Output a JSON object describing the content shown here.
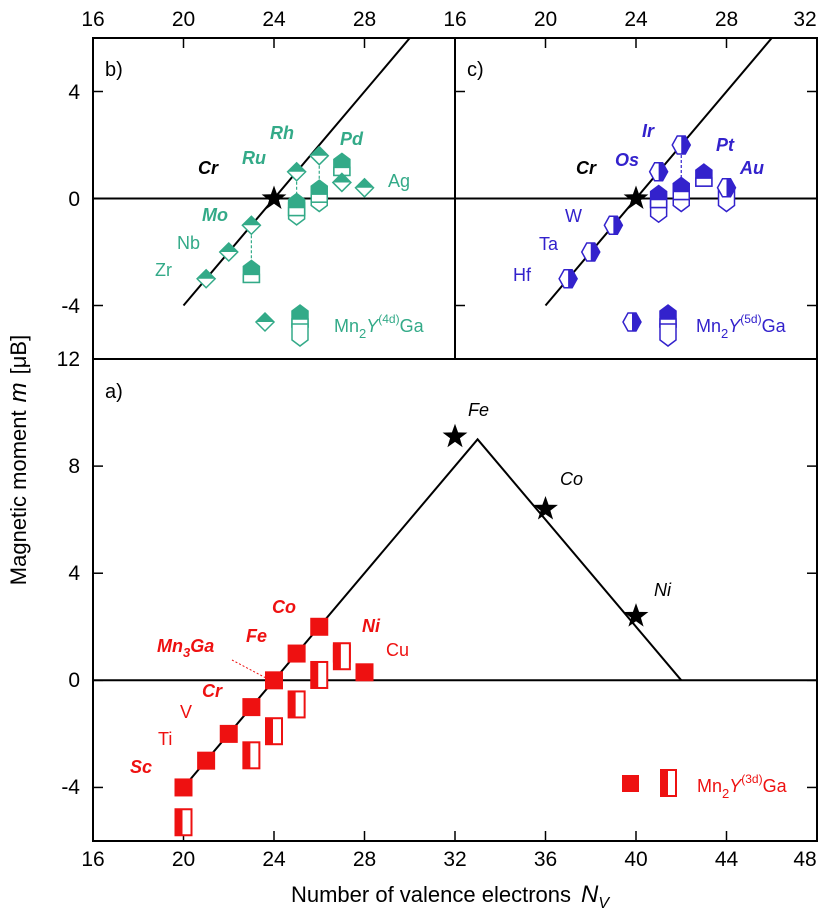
{
  "chart_data": [
    {
      "id": "a",
      "type": "scatter",
      "panel_label": "a)",
      "xlim": [
        16,
        48
      ],
      "ylim": [
        -6,
        12
      ],
      "xticks": [
        "16",
        "20",
        "24",
        "28",
        "32",
        "36",
        "40",
        "44",
        "48"
      ],
      "yticks": [
        "-4",
        "0",
        "4",
        "8",
        "12"
      ],
      "xlabel": "Number of valence electrons",
      "xlabel_symbol": "N",
      "xlabel_sub": "V",
      "ylabel": "Magnetic moment",
      "ylabel_symbol": "m",
      "ylabel_unit": "[μB]",
      "color": "#ee1111",
      "lines": [
        {
          "name": "Slater-Pauling",
          "x": [
            20,
            33,
            42
          ],
          "y": [
            -4,
            9,
            0
          ]
        },
        {
          "name": "zero",
          "x": [
            16,
            48
          ],
          "y": [
            0,
            0
          ]
        }
      ],
      "series": [
        {
          "name": "filled",
          "x": [
            20,
            21,
            22,
            23,
            24,
            25,
            26,
            27,
            28
          ],
          "y": [
            -4,
            -3,
            -2,
            -1,
            0,
            1,
            2,
            1,
            0.3
          ]
        },
        {
          "name": "half",
          "x": [
            20,
            23,
            24,
            25,
            26,
            27
          ],
          "y": [
            -5.3,
            -2.8,
            -1.9,
            -0.9,
            0.2,
            0.9
          ]
        }
      ],
      "stars": [
        {
          "label": "Fe",
          "x": 32,
          "y": 9.1
        },
        {
          "label": "Co",
          "x": 36,
          "y": 6.4
        },
        {
          "label": "Ni",
          "x": 40,
          "y": 2.4
        }
      ],
      "annotations": [
        "Sc",
        "Ti",
        "V",
        "Cr",
        "Mn3Ga",
        "Fe",
        "Co",
        "Ni",
        "Cu"
      ],
      "legend": {
        "label": "Mn2Y(3d)Ga",
        "prefix": "Mn",
        "sub": "2",
        "y": "Y",
        "sup": "(3d)",
        "suffix": "Ga",
        "position": "bottom-right"
      }
    },
    {
      "id": "b",
      "type": "scatter",
      "panel_label": "b)",
      "xlim": [
        16,
        32
      ],
      "ylim": [
        -6,
        6
      ],
      "xticks": [
        "16",
        "20",
        "24",
        "28"
      ],
      "yticks": [
        "-4",
        "0",
        "4"
      ],
      "color": "#33aa88",
      "lines": [
        {
          "name": "Slater-Pauling",
          "x": [
            20,
            30
          ],
          "y": [
            -4,
            6
          ]
        },
        {
          "name": "zero",
          "x": [
            16,
            32
          ],
          "y": [
            0,
            0
          ]
        }
      ],
      "series": [
        {
          "name": "diamond",
          "x": [
            21,
            22,
            23,
            25,
            26,
            27,
            28
          ],
          "y": [
            -3,
            -2,
            -1,
            1,
            1.6,
            0.6,
            0.4
          ]
        },
        {
          "name": "pentagon",
          "x": [
            23,
            25,
            26,
            27
          ],
          "y": [
            -2.8,
            -0.3,
            0.2,
            1.2
          ]
        },
        {
          "name": "pentagon-down",
          "x": [
            25,
            26
          ],
          "y": [
            -0.5,
            0
          ]
        }
      ],
      "stars": [
        {
          "label": "Cr",
          "x": 24,
          "y": 0
        }
      ],
      "annotations": [
        "Zr",
        "Nb",
        "Mo",
        "Cr",
        "Ru",
        "Rh",
        "Pd",
        "Ag"
      ],
      "legend": {
        "label": "Mn2Y(4d)Ga",
        "prefix": "Mn",
        "sub": "2",
        "y": "Y",
        "sup": "(4d)",
        "suffix": "Ga",
        "position": "bottom-right"
      }
    },
    {
      "id": "c",
      "type": "scatter",
      "panel_label": "c)",
      "xlim": [
        16,
        32
      ],
      "ylim": [
        -6,
        6
      ],
      "xticks": [
        "16",
        "20",
        "24",
        "28",
        "32"
      ],
      "color": "#3322cc",
      "lines": [
        {
          "name": "Slater-Pauling",
          "x": [
            20,
            30
          ],
          "y": [
            -4,
            6
          ]
        },
        {
          "name": "zero",
          "x": [
            16,
            32
          ],
          "y": [
            0,
            0
          ]
        }
      ],
      "series": [
        {
          "name": "hexagon",
          "x": [
            21,
            22,
            23,
            25,
            26,
            28
          ],
          "y": [
            -3,
            -2,
            -1,
            1,
            2,
            0.4
          ]
        },
        {
          "name": "pentagon",
          "x": [
            25,
            26,
            27
          ],
          "y": [
            0,
            0.3,
            0.8
          ]
        }
      ],
      "stars": [
        {
          "label": "Cr",
          "x": 24,
          "y": 0
        }
      ],
      "annotations": [
        "Hf",
        "Ta",
        "W",
        "Cr",
        "Os",
        "Ir",
        "Pt",
        "Au"
      ],
      "legend": {
        "label": "Mn2Y(5d)Ga",
        "prefix": "Mn",
        "sub": "2",
        "y": "Y",
        "sup": "(5d)",
        "suffix": "Ga",
        "position": "bottom-right"
      }
    }
  ]
}
